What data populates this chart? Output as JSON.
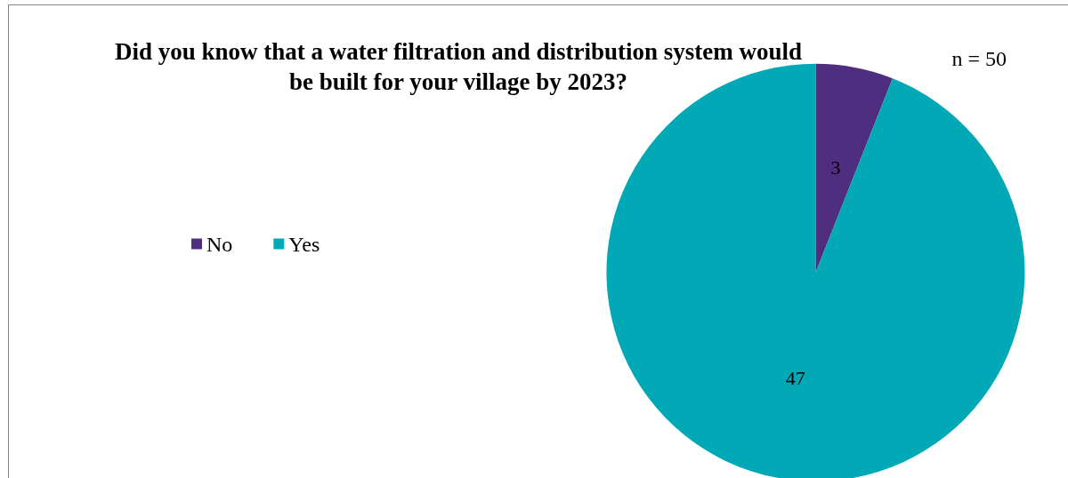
{
  "chart_data": {
    "type": "pie",
    "title": "Did you know that a water filtration and distribution system would\nbe built for your village by 2023?",
    "categories": [
      "No",
      "Yes"
    ],
    "values": [
      3,
      47
    ],
    "colors": [
      "#4f2d7f",
      "#00a9b5"
    ],
    "data_labels": true,
    "legend": "left",
    "annotations": [
      "n = 50"
    ]
  }
}
